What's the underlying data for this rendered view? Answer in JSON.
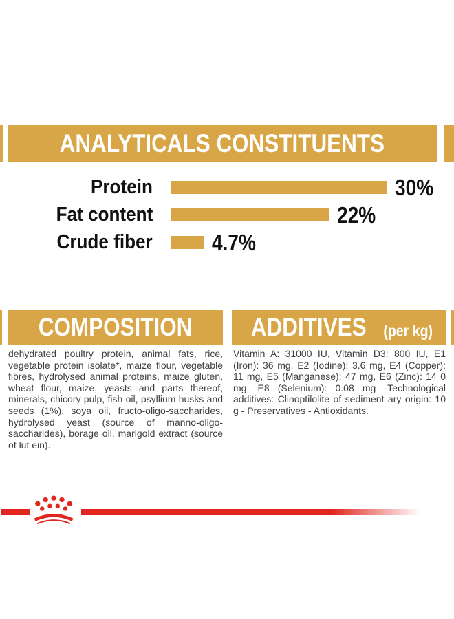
{
  "colors": {
    "gold": "#D9A647",
    "red": "#E0261E",
    "body_text": "#3F3F3F",
    "heading_text": "#FFFFFF",
    "chart_text": "#111111"
  },
  "analyticals_header": {
    "title": "ANALYTICALS CONSTITUENTS"
  },
  "chart_data": {
    "type": "bar",
    "orientation": "horizontal",
    "title": "ANALYTICALS CONSTITUENTS",
    "categories": [
      "Protein",
      "Fat content",
      "Crude fiber"
    ],
    "values": [
      30,
      22,
      4.7
    ],
    "value_labels": [
      "30%",
      "22%",
      "4.7%"
    ],
    "unit": "%",
    "xlim": [
      0,
      30
    ],
    "bar_color": "#D9A647",
    "grid": false,
    "legend": false
  },
  "composition": {
    "title": "COMPOSITION",
    "text": "dehydrated poultry protein, animal fats, rice, vegetable protein isolate*, maize flour, vegetable fibres, hydrolysed animal proteins, maize gluten, wheat flour, maize, yeasts and parts thereof, minerals, chicory pulp, fish oil, psyllium husks and seeds (1%), soya oil, fructo-oligo-saccharides, hydrolysed yeast (source of manno-oligo-saccharides), borage oil, marigold extract (source of lut ein)."
  },
  "additives": {
    "title": "ADDITIVES",
    "unit_suffix": "(per kg)",
    "text": "Vitamin A: 31000 IU, Vitamin D3: 800 IU, E1 (Iron): 36 mg, E2 (Iodine): 3.6 mg, E4 (Copper): 11 mg, E5 (Manganese): 47 mg, E6 (Zinc): 14 0 mg, E8 (Selenium): 0.08 mg -Technological additives: Clinoptilolite of sediment ary origin: 10 g - Preservatives - Antioxidants."
  },
  "footer": {
    "brand_icon": "royal-canin-crown-icon"
  }
}
